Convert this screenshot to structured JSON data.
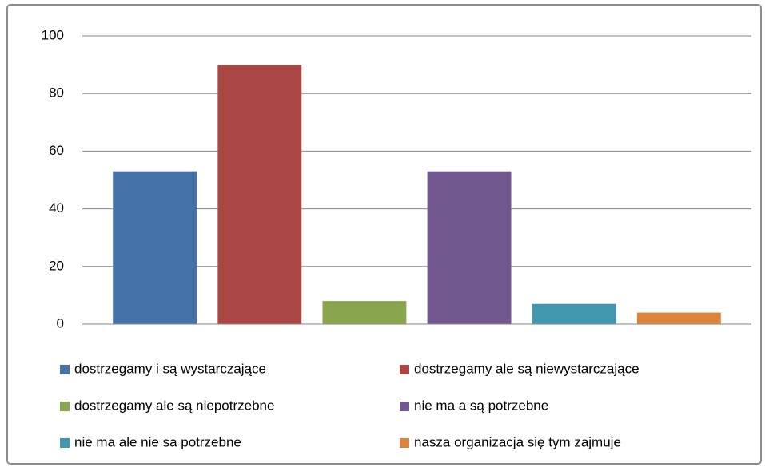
{
  "chart_data": {
    "type": "bar",
    "categories": [
      null
    ],
    "series": [
      {
        "name": "dostrzegamy i są wystarczające",
        "color": "#4572a7",
        "values": [
          53
        ]
      },
      {
        "name": "dostrzegamy ale są niewystarczające",
        "color": "#aa4643",
        "values": [
          90
        ]
      },
      {
        "name": "dostrzegamy ale są niepotrzebne",
        "color": "#89a54e",
        "values": [
          8
        ]
      },
      {
        "name": "nie ma a są potrzebne",
        "color": "#71588f",
        "values": [
          53
        ]
      },
      {
        "name": "nie ma ale nie sa potrzebne",
        "color": "#4198af",
        "values": [
          7
        ]
      },
      {
        "name": "nasza organizacja się tym zajmuje",
        "color": "#db843d",
        "values": [
          4
        ]
      }
    ],
    "ylim": [
      0,
      100
    ],
    "yticks": [
      0,
      20,
      40,
      60,
      80,
      100
    ],
    "grid": true,
    "legend": "bottom"
  }
}
